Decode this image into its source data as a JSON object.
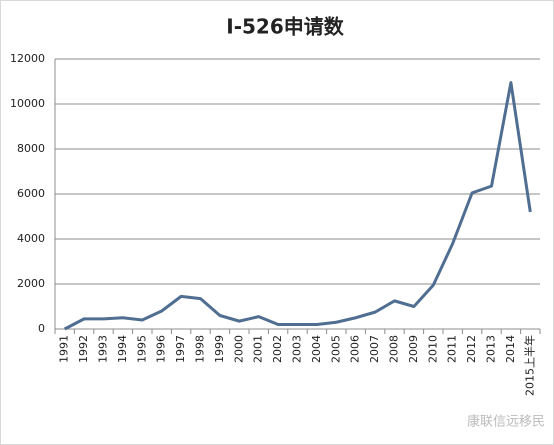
{
  "chart_data": {
    "type": "line",
    "title": "I-526申请数",
    "categories": [
      "1991",
      "1992",
      "1993",
      "1994",
      "1995",
      "1996",
      "1997",
      "1998",
      "1999",
      "2000",
      "2001",
      "2002",
      "2003",
      "2004",
      "2005",
      "2006",
      "2007",
      "2008",
      "2009",
      "2010",
      "2011",
      "2012",
      "2013",
      "2014",
      "2015上半年"
    ],
    "series": [
      {
        "name": "I-526申请数",
        "color": "#4f6e91",
        "values": [
          0,
          450,
          450,
          500,
          400,
          800,
          1450,
          1350,
          600,
          350,
          550,
          200,
          200,
          200,
          300,
          500,
          750,
          1250,
          1000,
          1950,
          3800,
          6050,
          6350,
          10950,
          5200
        ]
      }
    ],
    "ylim": [
      0,
      12000
    ],
    "yticks": [
      0,
      2000,
      4000,
      6000,
      8000,
      10000,
      12000
    ],
    "grid": true,
    "watermark": "康联信远移民"
  }
}
